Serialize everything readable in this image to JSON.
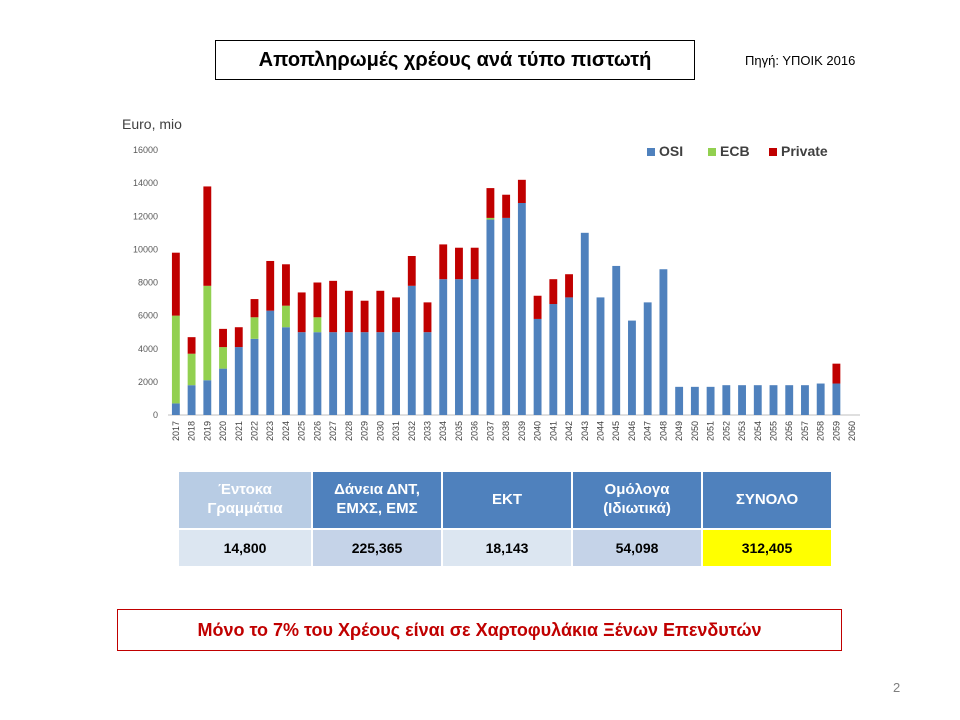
{
  "header": {
    "title": "Αποπληρωμές χρέους ανά τύπο πιστωτή",
    "source": "Πηγή: ΥΠΟΙΚ 2016"
  },
  "chart_data": {
    "type": "bar",
    "stacked": true,
    "ylabel": "Euro, mio",
    "ylim": [
      0,
      16000
    ],
    "yticks": [
      0,
      2000,
      4000,
      6000,
      8000,
      10000,
      12000,
      14000,
      16000
    ],
    "legend_position": "top-right",
    "categories": [
      "2017",
      "2018",
      "2019",
      "2020",
      "2021",
      "2022",
      "2023",
      "2024",
      "2025",
      "2026",
      "2027",
      "2028",
      "2029",
      "2030",
      "2031",
      "2032",
      "2033",
      "2034",
      "2035",
      "2036",
      "2037",
      "2038",
      "2039",
      "2040",
      "2041",
      "2042",
      "2043",
      "2044",
      "2045",
      "2046",
      "2047",
      "2048",
      "2049",
      "2050",
      "2051",
      "2052",
      "2053",
      "2054",
      "2055",
      "2056",
      "2057",
      "2058",
      "2059",
      "2060"
    ],
    "series": [
      {
        "name": "OSI",
        "color": "#4f81bd",
        "values": [
          700,
          1800,
          2100,
          2800,
          4100,
          4600,
          6300,
          5300,
          5000,
          5000,
          5000,
          5000,
          5000,
          5000,
          5000,
          7800,
          5000,
          8200,
          8200,
          8200,
          11800,
          11900,
          12800,
          5800,
          6700,
          7100,
          11000,
          7100,
          9000,
          5700,
          6800,
          8800,
          1700,
          1700,
          1700,
          1800,
          1800,
          1800,
          1800,
          1800,
          1800,
          1900,
          1900,
          0
        ]
      },
      {
        "name": "ECB",
        "color": "#92d050",
        "values": [
          5300,
          1900,
          5700,
          1300,
          0,
          1300,
          0,
          1300,
          0,
          900,
          0,
          0,
          0,
          0,
          0,
          0,
          0,
          0,
          0,
          0,
          100,
          0,
          0,
          0,
          0,
          0,
          0,
          0,
          0,
          0,
          0,
          0,
          0,
          0,
          0,
          0,
          0,
          0,
          0,
          0,
          0,
          0,
          0,
          0
        ]
      },
      {
        "name": "Private",
        "color": "#c00000",
        "values": [
          3800,
          1000,
          6000,
          1100,
          1200,
          1100,
          3000,
          2500,
          2400,
          2100,
          3100,
          2500,
          1900,
          2500,
          2100,
          1800,
          1800,
          2100,
          1900,
          1900,
          1800,
          1400,
          1400,
          1400,
          1500,
          1400,
          0,
          0,
          0,
          0,
          0,
          0,
          0,
          0,
          0,
          0,
          0,
          0,
          0,
          0,
          0,
          0,
          1200,
          0
        ]
      }
    ]
  },
  "summary": {
    "headers": [
      "Έντοκα Γραμμάτια",
      "Δάνεια ΔΝΤ, ΕΜΧΣ, ΕΜΣ",
      "ΕΚΤ",
      "Ομόλογα (Ιδιωτικά)",
      "ΣΥΝΟΛΟ"
    ],
    "values": [
      "14,800",
      "225,365",
      "18,143",
      "54,098",
      "312,405"
    ]
  },
  "note": "Μόνο το 7% του Χρέους είναι σε Χαρτοφυλάκια Ξένων Επενδυτών",
  "page_number": "2"
}
